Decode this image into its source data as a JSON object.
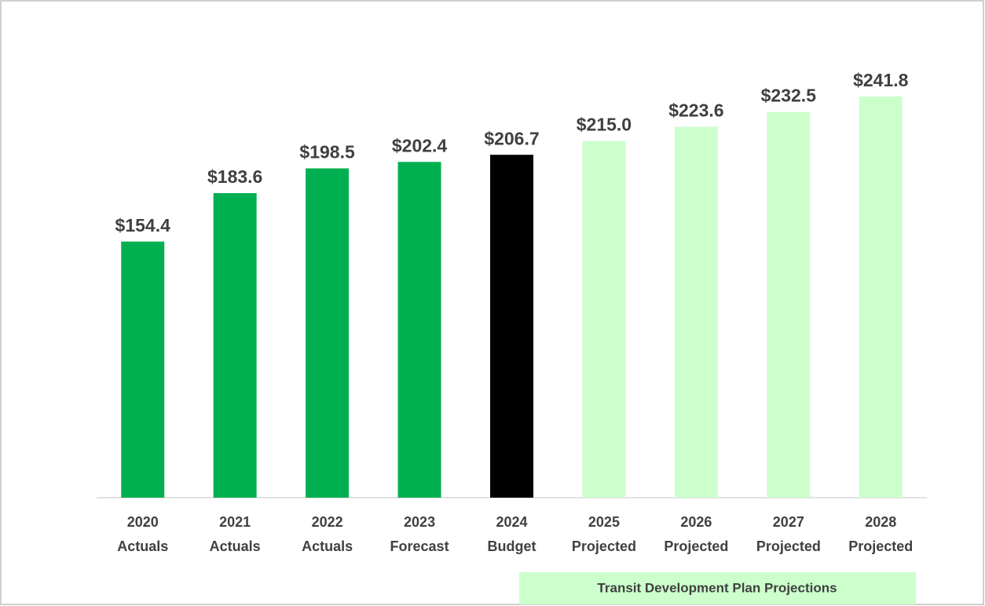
{
  "chart_data": {
    "type": "bar",
    "categories": [
      "2020 Actuals",
      "2021 Actuals",
      "2022 Actuals",
      "2023 Forecast",
      "2024 Budget",
      "2025 Projected",
      "2026 Projected",
      "2027 Projected",
      "2028 Projected"
    ],
    "values": [
      154.4,
      183.6,
      198.5,
      202.4,
      206.7,
      215.0,
      223.6,
      232.5,
      241.8
    ],
    "value_labels": [
      "$154.4",
      "$183.6",
      "$198.5",
      "$202.4",
      "$206.7",
      "$215.0",
      "$223.6",
      "$232.5",
      "$241.8"
    ],
    "colors": [
      "#00b050",
      "#00b050",
      "#00b050",
      "#00b050",
      "#000000",
      "#ccffcc",
      "#ccffcc",
      "#ccffcc",
      "#ccffcc"
    ],
    "annotation": "Transit Development Plan Projections"
  }
}
